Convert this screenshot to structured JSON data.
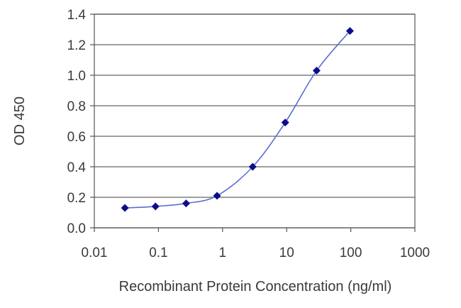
{
  "chart_data": {
    "type": "line",
    "title": "",
    "xlabel": "Recombinant Protein Concentration (ng/ml)",
    "ylabel": "OD 450",
    "xscale": "log",
    "xlim": [
      0.01,
      1000
    ],
    "ylim": [
      0,
      1.4
    ],
    "x_ticks": [
      "0.01",
      "0.1",
      "1",
      "10",
      "100",
      "1000"
    ],
    "y_ticks": [
      "0.0",
      "0.2",
      "0.4",
      "0.6",
      "0.8",
      "1.0",
      "1.2",
      "1.4"
    ],
    "grid": "horizontal",
    "legend": "none",
    "series": [
      {
        "x": [
          0.03,
          0.09,
          0.27,
          0.82,
          2.95,
          9.5,
          29.3,
          97
        ],
        "y": [
          0.13,
          0.14,
          0.16,
          0.21,
          0.4,
          0.69,
          1.03,
          1.29
        ],
        "color": "#0c0c8a",
        "line_color": "#5a6fd0",
        "marker": "diamond"
      }
    ]
  }
}
